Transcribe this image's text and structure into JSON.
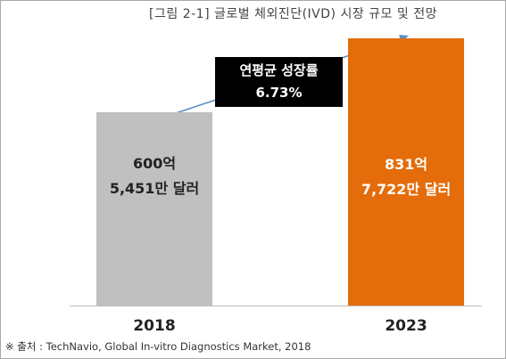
{
  "title": "[그림 2-1] 글로벌 체외진단(IVD) 시장 규모 및 전망",
  "chart_data": {
    "type": "bar",
    "categories": [
      "2018",
      "2023"
    ],
    "values": [
      600,
      831
    ],
    "value_labels": [
      [
        "600억",
        "5,451만 달러"
      ],
      [
        "831억",
        "7,722만 달러"
      ]
    ],
    "colors": [
      "#c0c0c0",
      "#e46c0a"
    ],
    "annotation": [
      "연평균 성장률",
      "6.73%"
    ]
  },
  "source": "※ 출처 : TechNavio, Global In-vitro Diagnostics Market, 2018"
}
